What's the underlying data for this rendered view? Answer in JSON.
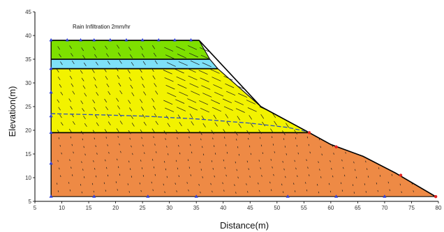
{
  "chart_data": {
    "type": "area",
    "title": "",
    "xlabel": "Distance(m)",
    "ylabel": "Elevation(m)",
    "xlim": [
      5,
      80
    ],
    "ylim": [
      5,
      45
    ],
    "xticks": [
      "5",
      "10",
      "15",
      "20",
      "25",
      "30",
      "35",
      "40",
      "45",
      "50",
      "55",
      "60",
      "65",
      "70",
      "75",
      "80"
    ],
    "yticks": [
      "5",
      "10",
      "15",
      "20",
      "25",
      "30",
      "35",
      "40",
      "45"
    ],
    "annotation": "Rain Infiltration 2mm/hr",
    "grid": false,
    "legend": "none",
    "layers": [
      {
        "color": "#ee8a45",
        "outline": [
          [
            8,
            6
          ],
          [
            79.5,
            6
          ],
          [
            75,
            9
          ],
          [
            72,
            11
          ],
          [
            66,
            14.5
          ],
          [
            60,
            17
          ],
          [
            56,
            19.5
          ],
          [
            8,
            19.5
          ]
        ]
      },
      {
        "color": "#f2f200",
        "outline": [
          [
            8,
            19.5
          ],
          [
            56,
            19.5
          ],
          [
            47,
            25
          ],
          [
            39,
            33
          ],
          [
            8,
            33
          ]
        ]
      },
      {
        "color": "#7ee0f8",
        "outline": [
          [
            8,
            33
          ],
          [
            39,
            33
          ],
          [
            37.5,
            35
          ],
          [
            8,
            35
          ]
        ]
      },
      {
        "color": "#7ee000",
        "outline": [
          [
            8,
            35
          ],
          [
            37.5,
            35
          ],
          [
            35.5,
            39
          ],
          [
            8,
            39
          ]
        ]
      }
    ],
    "slope_line": [
      [
        35.5,
        39
      ],
      [
        47,
        25
      ],
      [
        56,
        19.5
      ],
      [
        60,
        17
      ],
      [
        66,
        14.5
      ],
      [
        72,
        11
      ],
      [
        79.5,
        6
      ]
    ],
    "phreatic_line": [
      [
        8,
        23.5
      ],
      [
        16,
        23.3
      ],
      [
        25,
        23
      ],
      [
        35,
        22.4
      ],
      [
        45,
        21.5
      ],
      [
        52,
        20.6
      ],
      [
        56,
        19.6
      ]
    ],
    "boundary_markers_blue": [
      [
        8,
        39
      ],
      [
        8,
        33
      ],
      [
        8,
        28
      ],
      [
        8,
        23
      ],
      [
        8,
        19.5
      ],
      [
        8,
        13
      ],
      [
        8,
        6
      ],
      [
        16,
        6
      ],
      [
        26,
        6
      ],
      [
        35,
        6
      ],
      [
        52,
        6
      ],
      [
        61,
        6
      ],
      [
        70,
        6
      ],
      [
        11,
        39
      ],
      [
        13.5,
        39
      ],
      [
        16,
        39
      ],
      [
        19,
        39
      ],
      [
        22,
        39
      ],
      [
        25,
        39
      ],
      [
        28,
        39
      ],
      [
        31,
        39
      ],
      [
        34,
        39
      ]
    ],
    "boundary_markers_red": [
      [
        56,
        19.5
      ],
      [
        61,
        16.5
      ],
      [
        73,
        10.5
      ],
      [
        79.5,
        6
      ]
    ]
  }
}
